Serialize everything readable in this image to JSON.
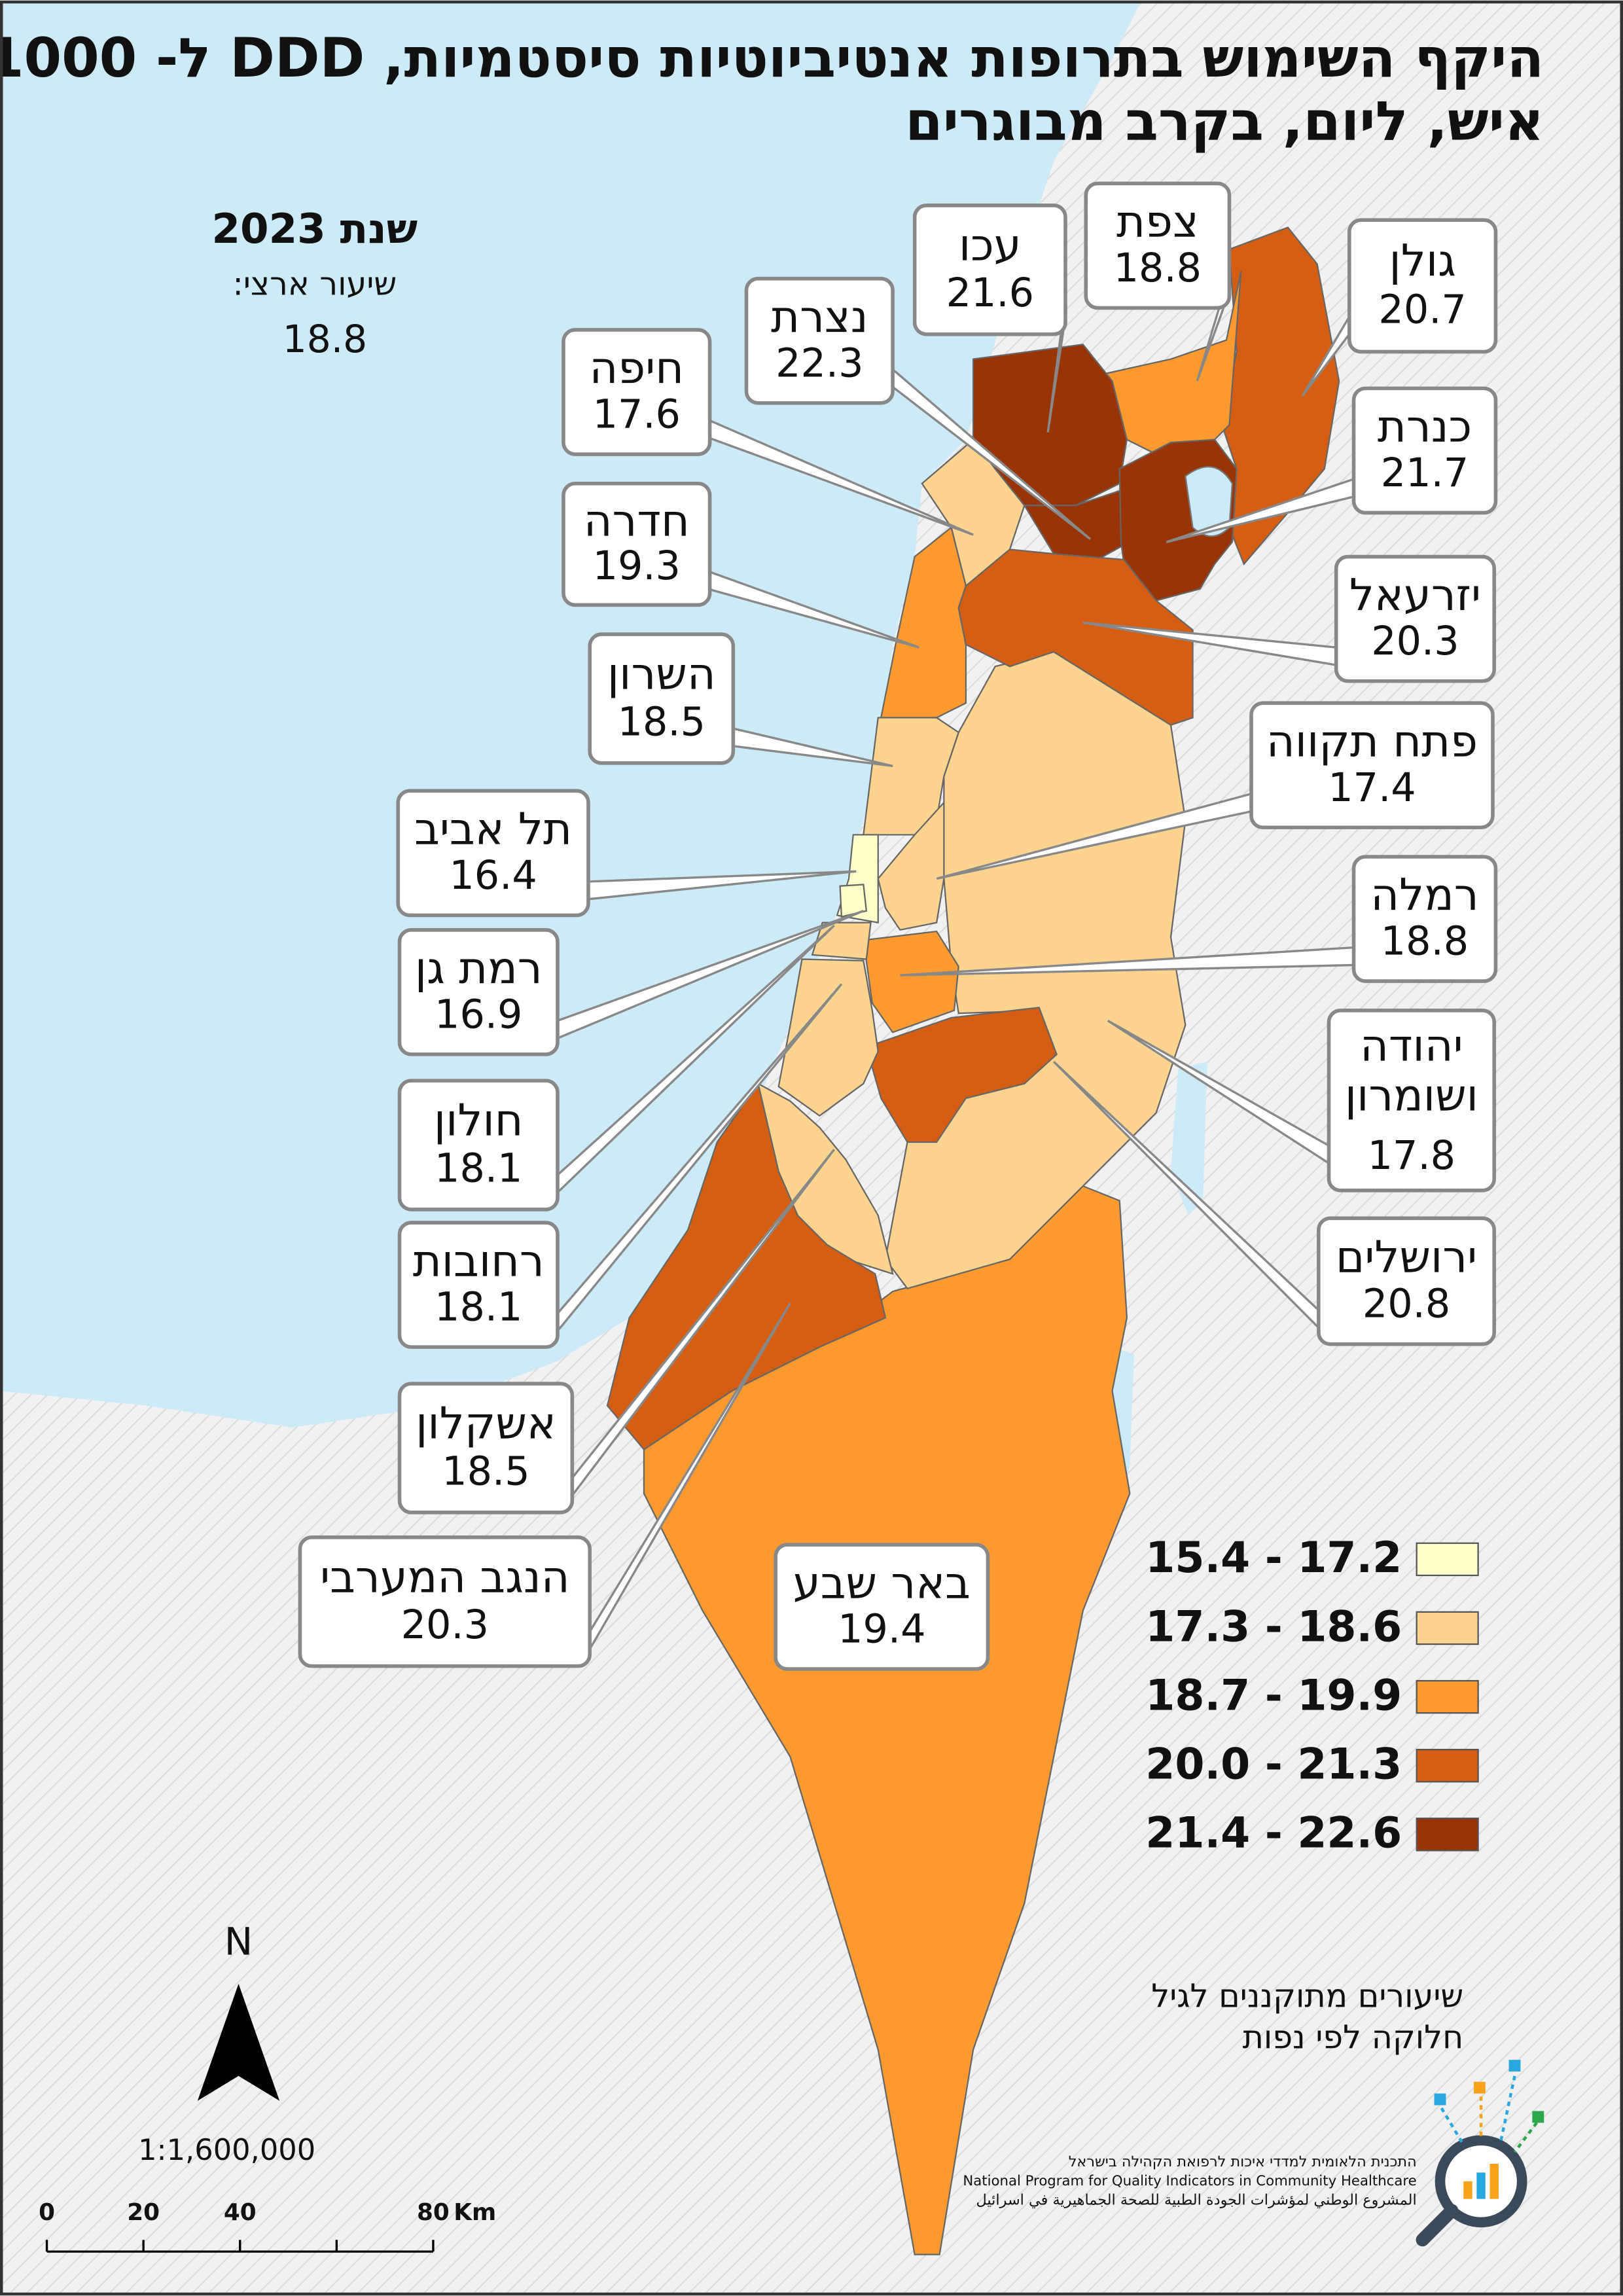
{
  "title_lines": [
    "היקף השימוש בתרופות אנטיביוטיות סיסטמיות, DDD ל- 1000",
    "איש, ליום, בקרב מבוגרים"
  ],
  "year_label": "שנת 2023",
  "national": {
    "label": "שיעור ארצי:",
    "value": 18.8
  },
  "districts": [
    {
      "name": "גולן",
      "value": 20.7,
      "color": "#d55e12"
    },
    {
      "name": "צפת",
      "value": 18.8,
      "color": "#fd9a2f"
    },
    {
      "name": "עכו",
      "value": 21.6,
      "color": "#983405"
    },
    {
      "name": "נצרת",
      "value": 22.3,
      "color": "#983405"
    },
    {
      "name": "חיפה",
      "value": 17.6,
      "color": "#fdd48f"
    },
    {
      "name": "כנרת",
      "value": 21.7,
      "color": "#983405"
    },
    {
      "name": "חדרה",
      "value": 19.3,
      "color": "#fd9a2f"
    },
    {
      "name": "יזרעאל",
      "value": 20.3,
      "color": "#d55e12"
    },
    {
      "name": "השרון",
      "value": 18.5,
      "color": "#fdd48f"
    },
    {
      "name": "פתח תקווה",
      "value": 17.4,
      "color": "#fdd48f"
    },
    {
      "name": "תל אביב",
      "value": 16.4,
      "color": "#ffffcc"
    },
    {
      "name": "רמלה",
      "value": 18.8,
      "color": "#fd9a2f"
    },
    {
      "name": "רמת גן",
      "value": 16.9,
      "color": "#ffffcc"
    },
    {
      "name": [
        "יהודה",
        "ושומרון"
      ],
      "value": 17.8,
      "color": "#fdd48f"
    },
    {
      "name": "חולון",
      "value": 18.1,
      "color": "#fdd48f"
    },
    {
      "name": "ירושלים",
      "value": 20.8,
      "color": "#d55e12"
    },
    {
      "name": "רחובות",
      "value": 18.1,
      "color": "#fdd48f"
    },
    {
      "name": "אשקלון",
      "value": 18.5,
      "color": "#fdd48f"
    },
    {
      "name": "הנגב המערבי",
      "value": 20.3,
      "color": "#d55e12"
    },
    {
      "name": "באר שבע",
      "value": 19.4,
      "color": "#fd9a2f"
    }
  ],
  "legend": [
    {
      "label": "15.4 - 17.2",
      "color": "#ffffcc"
    },
    {
      "label": "17.3 - 18.6",
      "color": "#fdd48f"
    },
    {
      "label": "18.7 - 19.9",
      "color": "#fd9a2f"
    },
    {
      "label": "20.0 - 21.3",
      "color": "#d55e12"
    },
    {
      "label": "21.4 - 22.6",
      "color": "#983405"
    }
  ],
  "note_lines": [
    "שיעורים מתוקננים לגיל",
    "חלוקה לפי נפות"
  ],
  "north": "N",
  "scale_ratio": "1:1,600,000",
  "scale_bar": {
    "ticks": [
      0,
      20,
      40,
      80
    ],
    "unit": "Km"
  },
  "logo_lines": [
    "התכנית הלאומית למדדי איכות לרפואת הקהילה בישראל",
    "National Program for Quality Indicators in Community Healthcare",
    "المشروع الوطني لمؤشرات الجودة الطبية للصحة الجماهيرية في اسرائيل"
  ]
}
